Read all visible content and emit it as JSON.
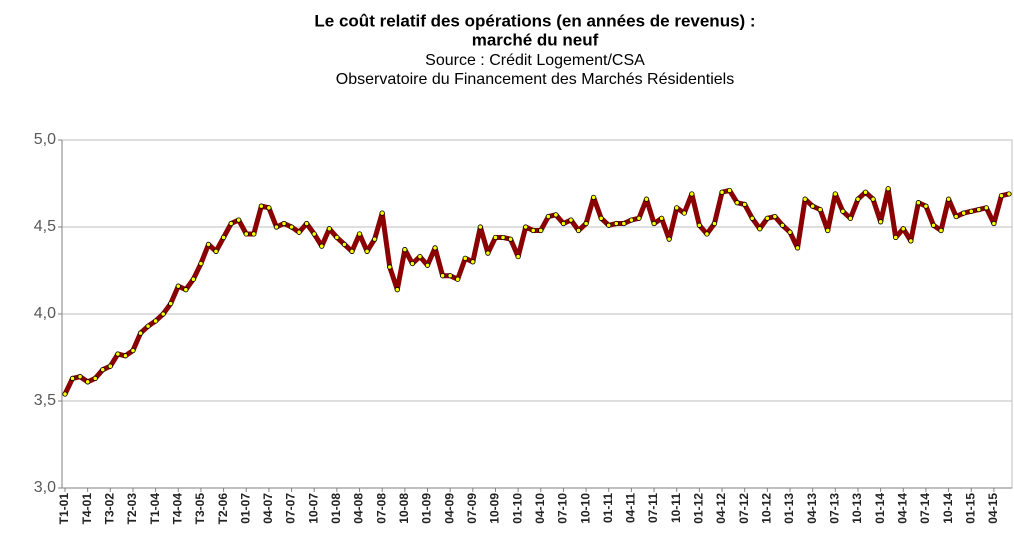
{
  "chart_data": {
    "type": "line",
    "title": "Le coût relatif des opérations (en années de revenus) :",
    "subtitle": "marché du neuf",
    "source": "Source : Crédit Logement/CSA",
    "source_detail": "Observatoire du Financement des Marchés Résidentiels",
    "categories": [
      "T1-01",
      null,
      null,
      "T4-01",
      null,
      null,
      "T3-02",
      null,
      null,
      "T2-03",
      null,
      null,
      "T1-04",
      null,
      null,
      "T4-04",
      null,
      null,
      "T3-05",
      null,
      null,
      "T2-06",
      null,
      null,
      "01-07",
      null,
      null,
      "04-07",
      null,
      null,
      "07-07",
      null,
      null,
      "10-07",
      null,
      null,
      "01-08",
      null,
      null,
      "04-08",
      null,
      null,
      "07-08",
      null,
      null,
      "10-08",
      null,
      null,
      "01-09",
      null,
      null,
      "04-09",
      null,
      null,
      "07-09",
      null,
      null,
      "10-09",
      null,
      null,
      "01-10",
      null,
      null,
      "04-10",
      null,
      null,
      "07-10",
      null,
      null,
      "10-10",
      null,
      null,
      "01-11",
      null,
      null,
      "04-11",
      null,
      null,
      "07-11",
      null,
      null,
      "10-11",
      null,
      null,
      "01-12",
      null,
      null,
      "04-12",
      null,
      null,
      "07-12",
      null,
      null,
      "10-12",
      null,
      null,
      "01-13",
      null,
      null,
      "04-13",
      null,
      null,
      "07-13",
      null,
      null,
      "10-13",
      null,
      null,
      "01-14",
      null,
      null,
      "04-14",
      null,
      null,
      "07-14",
      null,
      null,
      "10-14",
      null,
      null,
      "01-15",
      null,
      null,
      "04-15",
      null,
      null
    ],
    "series": [
      {
        "color": "#8b0000",
        "marker_color": "#ffff00",
        "values": [
          3.54,
          3.63,
          3.64,
          3.61,
          3.63,
          3.68,
          3.7,
          3.77,
          3.76,
          3.79,
          3.89,
          3.93,
          3.96,
          4.0,
          4.06,
          4.16,
          4.14,
          4.2,
          4.29,
          4.4,
          4.36,
          4.44,
          4.52,
          4.54,
          4.46,
          4.46,
          4.62,
          4.61,
          4.5,
          4.52,
          4.5,
          4.47,
          4.52,
          4.46,
          4.39,
          4.49,
          4.44,
          4.4,
          4.36,
          4.46,
          4.36,
          4.43,
          4.58,
          4.27,
          4.14,
          4.37,
          4.29,
          4.33,
          4.28,
          4.38,
          4.22,
          4.22,
          4.2,
          4.32,
          4.3,
          4.5,
          4.35,
          4.44,
          4.44,
          4.43,
          4.33,
          4.5,
          4.48,
          4.48,
          4.56,
          4.57,
          4.52,
          4.54,
          4.48,
          4.52,
          4.67,
          4.55,
          4.51,
          4.52,
          4.52,
          4.54,
          4.55,
          4.66,
          4.52,
          4.55,
          4.43,
          4.61,
          4.58,
          4.69,
          4.51,
          4.46,
          4.52,
          4.7,
          4.71,
          4.64,
          4.63,
          4.55,
          4.49,
          4.55,
          4.56,
          4.51,
          4.47,
          4.38,
          4.66,
          4.62,
          4.6,
          4.48,
          4.69,
          4.59,
          4.55,
          4.66,
          4.7,
          4.66,
          4.53,
          4.72,
          4.44,
          4.49,
          4.42,
          4.64,
          4.62,
          4.51,
          4.48,
          4.66,
          4.56,
          4.58,
          4.59,
          4.6,
          4.61,
          4.52,
          4.68,
          4.69
        ]
      }
    ],
    "ylim": [
      3,
      5
    ],
    "yticks": [
      {
        "value": 3,
        "label": "3,0"
      },
      {
        "value": 3.5,
        "label": "3,5"
      },
      {
        "value": 4,
        "label": "4,0"
      },
      {
        "value": 4.5,
        "label": "4,5"
      },
      {
        "value": 5,
        "label": "5,0"
      }
    ],
    "grid": true
  }
}
